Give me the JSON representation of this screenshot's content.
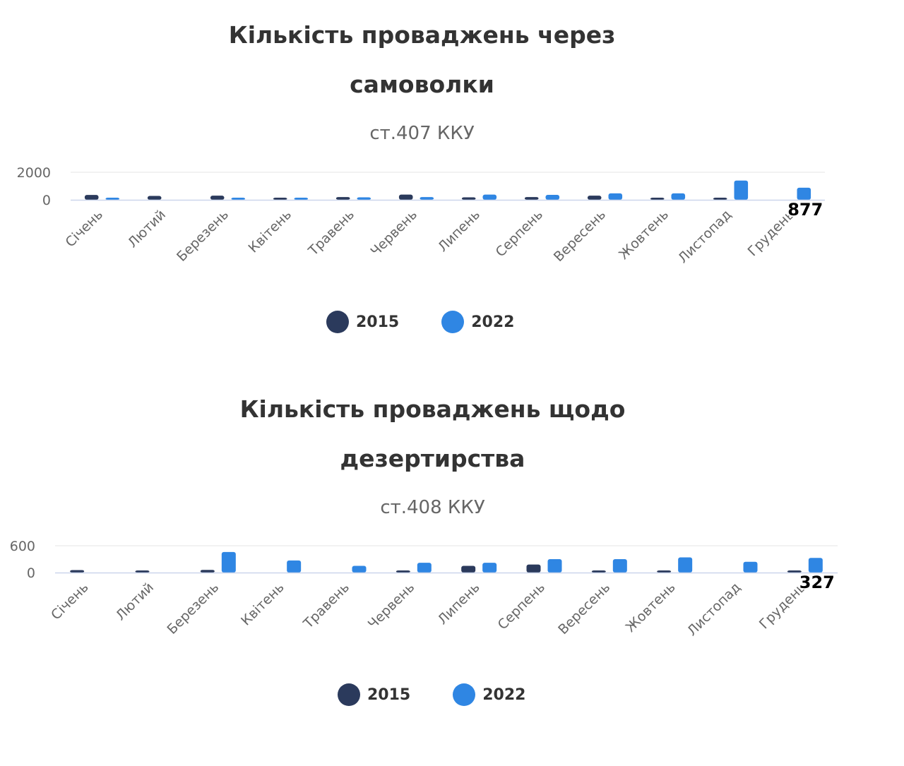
{
  "colors": {
    "series_2015": "#2b3a5c",
    "series_2022": "#2f86e3",
    "grid": "#e6e6e6",
    "axis": "#ccd6eb",
    "tick": "#666666"
  },
  "chart_data": [
    {
      "type": "bar",
      "title_line1": "Кількість проваджень через",
      "title_line2": "самоволки",
      "subtitle": "ст.407 ККУ",
      "categories": [
        "Січень",
        "Лютий",
        "Березень",
        "Квітень",
        "Травень",
        "Червень",
        "Липень",
        "Серпень",
        "Вересень",
        "Жовтень",
        "Листопад",
        "Грудень"
      ],
      "series": [
        {
          "name": "2015",
          "values": [
            350,
            280,
            300,
            60,
            200,
            380,
            180,
            200,
            300,
            60,
            90,
            0
          ]
        },
        {
          "name": "2022",
          "values": [
            70,
            0,
            100,
            70,
            180,
            200,
            380,
            360,
            470,
            470,
            1400,
            877
          ]
        }
      ],
      "ylim": [
        0,
        2000
      ],
      "yticks": [
        "0",
        "2000"
      ],
      "data_label": {
        "series": 1,
        "index": 11,
        "text": "877"
      },
      "legend": "bottom-center",
      "grid": true
    },
    {
      "type": "bar",
      "title_line1": "Кількість проваджень щодо",
      "title_line2": "дезертирства",
      "subtitle": "ст.408 ККУ",
      "categories": [
        "Січень",
        "Лютий",
        "Березень",
        "Квітень",
        "Травень",
        "Червень",
        "Липень",
        "Серпень",
        "Вересень",
        "Жовтень",
        "Листопад",
        "Грудень"
      ],
      "series": [
        {
          "name": "2015",
          "values": [
            55,
            35,
            60,
            0,
            0,
            30,
            150,
            180,
            30,
            30,
            0,
            20
          ]
        },
        {
          "name": "2022",
          "values": [
            0,
            0,
            460,
            270,
            150,
            220,
            220,
            300,
            300,
            340,
            240,
            327
          ]
        }
      ],
      "ylim": [
        0,
        600
      ],
      "yticks": [
        "0",
        "600"
      ],
      "data_label": {
        "series": 1,
        "index": 11,
        "text": "327"
      },
      "legend": "bottom-center",
      "grid": true
    }
  ]
}
